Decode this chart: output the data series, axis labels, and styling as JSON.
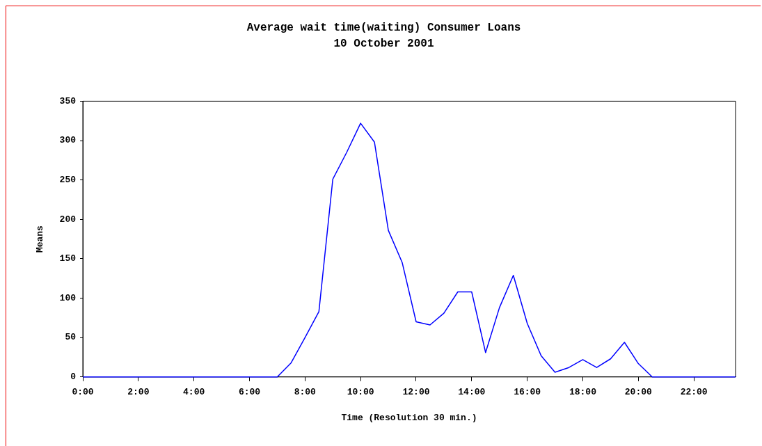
{
  "chart_data": {
    "type": "line",
    "title": "Average wait time(waiting) Consumer Loans",
    "subtitle": "10 October 2001",
    "xlabel": "Time (Resolution 30 min.)",
    "ylabel": "Means",
    "x": [
      0,
      0.5,
      1,
      1.5,
      2,
      2.5,
      3,
      3.5,
      4,
      4.5,
      5,
      5.5,
      6,
      6.5,
      7,
      7.5,
      8,
      8.5,
      9,
      9.5,
      10,
      10.5,
      11,
      11.5,
      12,
      12.5,
      13,
      13.5,
      14,
      14.5,
      15,
      15.5,
      16,
      16.5,
      17,
      17.5,
      18,
      18.5,
      19,
      19.5,
      20,
      20.5,
      21,
      21.5,
      22,
      22.5,
      23,
      23.5
    ],
    "series": [
      {
        "color": "#0000ff",
        "values": [
          0,
          0,
          0,
          0,
          0,
          0,
          0,
          0,
          0,
          0,
          0,
          0,
          0,
          0,
          0,
          18,
          50,
          83,
          251,
          285,
          322,
          298,
          186,
          145,
          70,
          66,
          81,
          108,
          108,
          31,
          88,
          129,
          68,
          27,
          6,
          12,
          22,
          12,
          23,
          44,
          17,
          0,
          0,
          0,
          0,
          0,
          0,
          0
        ]
      }
    ],
    "xlim": [
      0,
      23.5
    ],
    "xticks": [
      {
        "value": 0,
        "label": "0:00"
      },
      {
        "value": 2,
        "label": "2:00"
      },
      {
        "value": 4,
        "label": "4:00"
      },
      {
        "value": 6,
        "label": "6:00"
      },
      {
        "value": 8,
        "label": "8:00"
      },
      {
        "value": 10,
        "label": "10:00"
      },
      {
        "value": 12,
        "label": "12:00"
      },
      {
        "value": 14,
        "label": "14:00"
      },
      {
        "value": 16,
        "label": "16:00"
      },
      {
        "value": 18,
        "label": "18:00"
      },
      {
        "value": 20,
        "label": "20:00"
      },
      {
        "value": 22,
        "label": "22:00"
      }
    ],
    "ylim": [
      0,
      350
    ],
    "yticks": [
      0,
      50,
      100,
      150,
      200,
      250,
      300,
      350
    ],
    "grid": false,
    "legend": false,
    "marker": "none",
    "line_style": "solid"
  }
}
